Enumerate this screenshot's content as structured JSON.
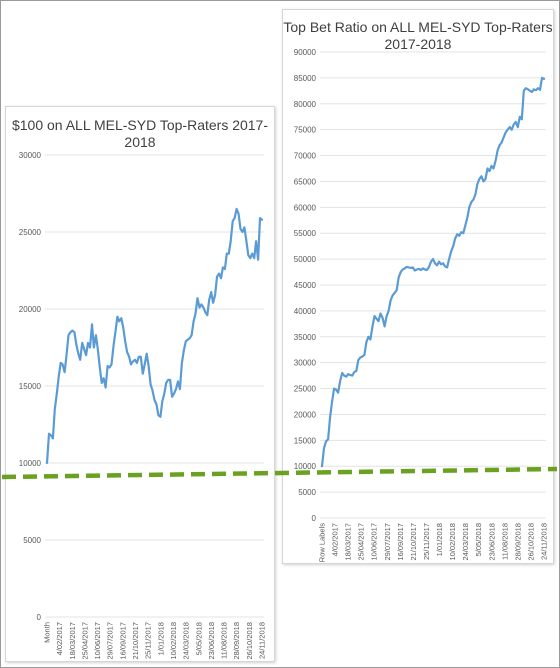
{
  "chart_data": [
    {
      "type": "line",
      "title": "$100 on ALL MEL-SYD Top-Raters 2017-2018",
      "xlabel": "",
      "ylabel": "",
      "ylim": [
        0,
        30000
      ],
      "yticks": [
        0,
        5000,
        10000,
        15000,
        20000,
        25000,
        30000
      ],
      "grid": true,
      "legend": "none",
      "x_tick_labels": [
        "Month",
        "4/02/2017",
        "18/03/2017",
        "25/04/2017",
        "10/06/2017",
        "29/07/2017",
        "16/09/2017",
        "21/10/2017",
        "25/11/2017",
        "1/01/2018",
        "10/02/2018",
        "24/03/2018",
        "5/05/2018",
        "23/06/2018",
        "11/08/2018",
        "28/09/2018",
        "26/10/2018",
        "24/11/2018"
      ],
      "series": [
        {
          "color": "#5b9bd5",
          "values": [
            10000,
            11900,
            11800,
            11600,
            13500,
            14500,
            15600,
            16500,
            16400,
            15900,
            17000,
            18300,
            18500,
            18600,
            18500,
            17700,
            17100,
            16700,
            17800,
            17400,
            17000,
            17800,
            17500,
            19000,
            17500,
            18300,
            17400,
            16200,
            15200,
            15500,
            14900,
            16300,
            16200,
            16400,
            17600,
            18500,
            19500,
            19200,
            19400,
            18800,
            17900,
            17200,
            16900,
            16400,
            16600,
            16700,
            16500,
            16900,
            16900,
            15800,
            16400,
            17100,
            16300,
            15100,
            14700,
            14100,
            13800,
            13100,
            13000,
            14000,
            14500,
            15200,
            15400,
            15400,
            14300,
            14500,
            14800,
            15300,
            14800,
            16500,
            17300,
            17900,
            18000,
            18100,
            18300,
            19200,
            19700,
            20700,
            20100,
            20300,
            20100,
            19800,
            19600,
            20600,
            21100,
            20400,
            20900,
            22100,
            22300,
            22000,
            22700,
            22600,
            23600,
            23600,
            24400,
            25700,
            25900,
            26500,
            26200,
            25200,
            25000,
            25300,
            24400,
            23500,
            23300,
            23600,
            23300,
            24400,
            23200,
            25900,
            25800
          ]
        }
      ]
    },
    {
      "type": "line",
      "title": "Top Bet Ratio on ALL MEL-SYD Top-Raters 2017-2018",
      "xlabel": "",
      "ylabel": "",
      "ylim": [
        0,
        90000
      ],
      "yticks": [
        0,
        5000,
        10000,
        15000,
        20000,
        25000,
        30000,
        35000,
        40000,
        45000,
        50000,
        55000,
        60000,
        65000,
        70000,
        75000,
        80000,
        85000,
        90000
      ],
      "grid": true,
      "legend": "none",
      "x_tick_labels": [
        "Row Labels",
        "4/02/2017",
        "18/03/2017",
        "25/04/2017",
        "10/06/2017",
        "29/07/2017",
        "16/09/2017",
        "21/10/2017",
        "25/11/2017",
        "1/01/2018",
        "10/02/2018",
        "24/03/2018",
        "5/05/2018",
        "23/06/2018",
        "11/08/2018",
        "28/09/2018",
        "26/10/2018",
        "24/11/2018"
      ],
      "series": [
        {
          "color": "#5b9bd5",
          "values": [
            10000,
            13500,
            14800,
            15200,
            19500,
            22500,
            25000,
            24800,
            24200,
            26500,
            28000,
            27500,
            27300,
            27800,
            27600,
            27500,
            28200,
            28400,
            30500,
            31000,
            31200,
            31500,
            34000,
            35000,
            34500,
            37000,
            39000,
            38500,
            38000,
            39500,
            38700,
            37000,
            39000,
            40000,
            42000,
            43000,
            43500,
            44000,
            46500,
            47500,
            48000,
            48200,
            48500,
            48400,
            48300,
            48400,
            47800,
            48000,
            48100,
            47900,
            48200,
            48000,
            47900,
            48500,
            49500,
            50000,
            49200,
            48800,
            49500,
            49000,
            49200,
            48600,
            48400,
            50000,
            51500,
            52500,
            54000,
            54800,
            54500,
            55200,
            55000,
            56500,
            58000,
            60000,
            61000,
            61500,
            62500,
            64500,
            65500,
            66000,
            65000,
            65500,
            67500,
            67000,
            68000,
            67500,
            69000,
            71000,
            72000,
            72500,
            73500,
            74500,
            75000,
            75500,
            75000,
            76000,
            76500,
            75500,
            77500,
            77000,
            82500,
            83000,
            82800,
            82500,
            82300,
            82800,
            82600,
            83000,
            82700,
            85000,
            84800
          ]
        }
      ]
    }
  ]
}
